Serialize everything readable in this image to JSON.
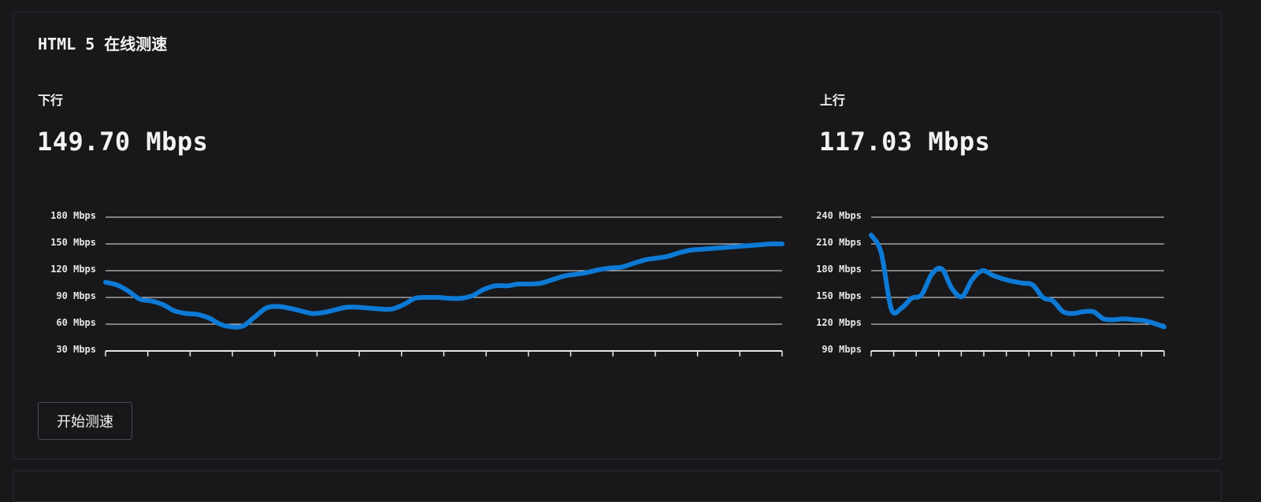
{
  "page": {
    "title": "HTML 5 在线测速",
    "start_button": "开始测速"
  },
  "download": {
    "label": "下行",
    "speed": "149.70 Mbps"
  },
  "upload": {
    "label": "上行",
    "speed": "117.03 Mbps"
  },
  "colors": {
    "background": "#18181b",
    "line": "#0d7ad6",
    "grid": "#e8e8e8"
  },
  "chart_data": [
    {
      "type": "line",
      "name": "download",
      "y_ticks": [
        "180 Mbps",
        "150 Mbps",
        "120 Mbps",
        "90 Mbps",
        "60 Mbps",
        "30 Mbps"
      ],
      "ylim": [
        30,
        180
      ],
      "x_ticks": 17,
      "grid": true,
      "values": [
        107,
        104,
        97,
        88,
        86,
        82,
        75,
        72,
        71,
        67,
        60,
        57,
        58,
        68,
        78,
        80,
        78,
        75,
        72,
        73,
        76,
        79,
        79,
        78,
        77,
        77,
        82,
        89,
        90,
        90,
        89,
        89,
        92,
        99,
        103,
        103,
        105,
        105,
        106,
        110,
        114,
        116,
        118,
        121,
        123,
        124,
        128,
        132,
        134,
        136,
        140,
        143,
        144,
        145,
        146,
        147,
        148,
        149,
        150,
        150
      ]
    },
    {
      "type": "line",
      "name": "upload",
      "y_ticks": [
        "240 Mbps",
        "210 Mbps",
        "180 Mbps",
        "150 Mbps",
        "120 Mbps",
        "90 Mbps"
      ],
      "ylim": [
        90,
        240
      ],
      "x_ticks": 14,
      "grid": true,
      "values": [
        220,
        200,
        137,
        138,
        149,
        153,
        176,
        182,
        160,
        151,
        170,
        180,
        175,
        171,
        168,
        166,
        164,
        150,
        146,
        134,
        132,
        134,
        134,
        126,
        125,
        126,
        125,
        124,
        121,
        117
      ]
    }
  ]
}
